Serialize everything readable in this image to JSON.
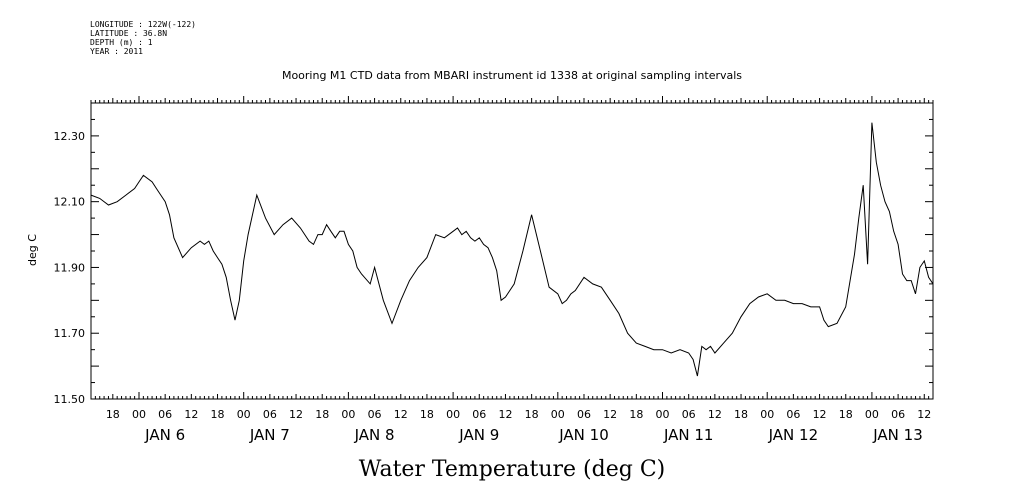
{
  "metadata": {
    "longitude": "LONGITUDE : 122W(-122)",
    "latitude": "LATITUDE : 36.8N",
    "depth": "DEPTH (m) : 1",
    "year": "YEAR : 2011"
  },
  "chart_data": {
    "type": "line",
    "title": "Mooring M1 CTD data from MBARI instrument id 1338 at original sampling intervals",
    "xlabel": "Water Temperature (deg C)",
    "ylabel": "deg C",
    "ylim": [
      11.5,
      12.4
    ],
    "xlim": [
      "2011-01-05T13:00",
      "2011-01-13T14:00"
    ],
    "y_ticks": [
      "11.50",
      "11.70",
      "11.90",
      "12.10",
      "12.30"
    ],
    "x_hour_ticks": [
      "18",
      "00",
      "06",
      "12",
      "18",
      "00",
      "06",
      "12",
      "18",
      "00",
      "06",
      "12",
      "18",
      "00",
      "06",
      "12",
      "18",
      "00",
      "06",
      "12",
      "18",
      "00",
      "06",
      "12",
      "18",
      "00",
      "06",
      "12",
      "18",
      "00",
      "06",
      "12"
    ],
    "x_day_labels": [
      "JAN  6",
      "JAN  7",
      "JAN  8",
      "JAN  9",
      "JAN 10",
      "JAN 11",
      "JAN 12",
      "JAN 13"
    ],
    "grid": false,
    "legend": "none",
    "series": [
      {
        "x": [
          "2011-01-05T13:00",
          "2011-01-05T15:00",
          "2011-01-05T17:00",
          "2011-01-05T19:00",
          "2011-01-05T21:00",
          "2011-01-05T23:00",
          "2011-01-06T00:00",
          "2011-01-06T01:00",
          "2011-01-06T03:00",
          "2011-01-06T04:00",
          "2011-01-06T05:00",
          "2011-01-06T06:00",
          "2011-01-06T07:00",
          "2011-01-06T08:00",
          "2011-01-06T10:00",
          "2011-01-06T12:00",
          "2011-01-06T14:00",
          "2011-01-06T15:00",
          "2011-01-06T16:00",
          "2011-01-06T17:00",
          "2011-01-06T18:00",
          "2011-01-06T19:00",
          "2011-01-06T20:00",
          "2011-01-06T21:00",
          "2011-01-06T22:00",
          "2011-01-06T23:00",
          "2011-01-07T00:00",
          "2011-01-07T01:00",
          "2011-01-07T03:00",
          "2011-01-07T05:00",
          "2011-01-07T07:00",
          "2011-01-07T09:00",
          "2011-01-07T11:00",
          "2011-01-07T13:00",
          "2011-01-07T15:00",
          "2011-01-07T16:00",
          "2011-01-07T17:00",
          "2011-01-07T18:00",
          "2011-01-07T19:00",
          "2011-01-07T20:00",
          "2011-01-07T21:00",
          "2011-01-07T22:00",
          "2011-01-07T23:00",
          "2011-01-08T00:00",
          "2011-01-08T01:00",
          "2011-01-08T02:00",
          "2011-01-08T03:00",
          "2011-01-08T05:00",
          "2011-01-08T06:00",
          "2011-01-08T08:00",
          "2011-01-08T10:00",
          "2011-01-08T12:00",
          "2011-01-08T14:00",
          "2011-01-08T16:00",
          "2011-01-08T18:00",
          "2011-01-08T20:00",
          "2011-01-08T22:00",
          "2011-01-09T00:00",
          "2011-01-09T01:00",
          "2011-01-09T02:00",
          "2011-01-09T03:00",
          "2011-01-09T04:00",
          "2011-01-09T05:00",
          "2011-01-09T06:00",
          "2011-01-09T07:00",
          "2011-01-09T08:00",
          "2011-01-09T09:00",
          "2011-01-09T10:00",
          "2011-01-09T11:00",
          "2011-01-09T12:00",
          "2011-01-09T14:00",
          "2011-01-09T16:00",
          "2011-01-09T18:00",
          "2011-01-09T20:00",
          "2011-01-09T22:00",
          "2011-01-10T00:00",
          "2011-01-10T01:00",
          "2011-01-10T02:00",
          "2011-01-10T03:00",
          "2011-01-10T04:00",
          "2011-01-10T06:00",
          "2011-01-10T08:00",
          "2011-01-10T10:00",
          "2011-01-10T12:00",
          "2011-01-10T14:00",
          "2011-01-10T16:00",
          "2011-01-10T18:00",
          "2011-01-10T20:00",
          "2011-01-10T22:00",
          "2011-01-11T00:00",
          "2011-01-11T02:00",
          "2011-01-11T04:00",
          "2011-01-11T06:00",
          "2011-01-11T07:00",
          "2011-01-11T08:00",
          "2011-01-11T09:00",
          "2011-01-11T10:00",
          "2011-01-11T11:00",
          "2011-01-11T12:00",
          "2011-01-11T14:00",
          "2011-01-11T16:00",
          "2011-01-11T18:00",
          "2011-01-11T20:00",
          "2011-01-11T22:00",
          "2011-01-12T00:00",
          "2011-01-12T02:00",
          "2011-01-12T04:00",
          "2011-01-12T06:00",
          "2011-01-12T08:00",
          "2011-01-12T10:00",
          "2011-01-12T12:00",
          "2011-01-12T13:00",
          "2011-01-12T14:00",
          "2011-01-12T16:00",
          "2011-01-12T18:00",
          "2011-01-12T19:00",
          "2011-01-12T20:00",
          "2011-01-12T21:00",
          "2011-01-12T22:00",
          "2011-01-12T23:00",
          "2011-01-13T00:00",
          "2011-01-13T01:00",
          "2011-01-13T02:00",
          "2011-01-13T03:00",
          "2011-01-13T04:00",
          "2011-01-13T05:00",
          "2011-01-13T06:00",
          "2011-01-13T07:00",
          "2011-01-13T08:00",
          "2011-01-13T09:00",
          "2011-01-13T10:00",
          "2011-01-13T11:00",
          "2011-01-13T12:00",
          "2011-01-13T13:00",
          "2011-01-13T14:00"
        ],
        "values": [
          12.12,
          12.11,
          12.09,
          12.1,
          12.12,
          12.14,
          12.16,
          12.18,
          12.16,
          12.14,
          12.12,
          12.1,
          12.06,
          11.99,
          11.93,
          11.96,
          11.98,
          11.97,
          11.98,
          11.95,
          11.93,
          11.91,
          11.87,
          11.8,
          11.74,
          11.8,
          11.92,
          12.0,
          12.12,
          12.05,
          12.0,
          12.03,
          12.05,
          12.02,
          11.98,
          11.97,
          12.0,
          12.0,
          12.03,
          12.01,
          11.99,
          12.01,
          12.01,
          11.97,
          11.95,
          11.9,
          11.88,
          11.85,
          11.9,
          11.8,
          11.73,
          11.8,
          11.86,
          11.9,
          11.93,
          12.0,
          11.99,
          12.01,
          12.02,
          12.0,
          12.01,
          11.99,
          11.98,
          11.99,
          11.97,
          11.96,
          11.93,
          11.89,
          11.8,
          11.81,
          11.85,
          11.95,
          12.06,
          11.95,
          11.84,
          11.82,
          11.79,
          11.8,
          11.82,
          11.83,
          11.87,
          11.85,
          11.84,
          11.8,
          11.76,
          11.7,
          11.67,
          11.66,
          11.65,
          11.65,
          11.64,
          11.65,
          11.64,
          11.62,
          11.57,
          11.66,
          11.65,
          11.66,
          11.64,
          11.67,
          11.7,
          11.75,
          11.79,
          11.81,
          11.82,
          11.8,
          11.8,
          11.79,
          11.79,
          11.78,
          11.78,
          11.74,
          11.72,
          11.73,
          11.78,
          11.86,
          11.94,
          12.05,
          12.15,
          11.91,
          12.34,
          12.22,
          12.15,
          12.1,
          12.07,
          12.01,
          11.97,
          11.88,
          11.86,
          11.86,
          11.82,
          11.9,
          11.92,
          11.87,
          11.85
        ]
      }
    ]
  }
}
